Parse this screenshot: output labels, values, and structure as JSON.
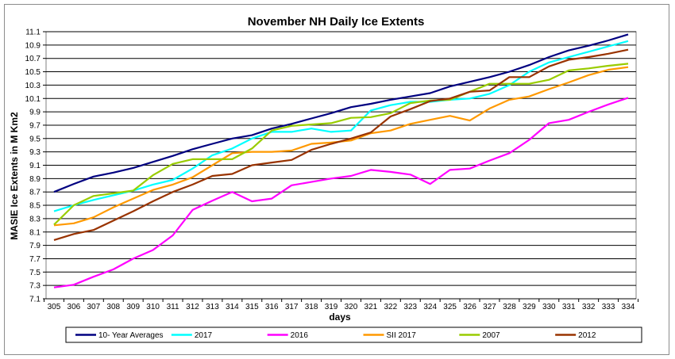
{
  "chart_data": {
    "type": "line",
    "title": "November NH Daily  Ice Extents",
    "xlabel": "days",
    "ylabel": "MASIE Ice Extents in M Km2",
    "x": [
      305,
      306,
      307,
      308,
      309,
      310,
      311,
      312,
      313,
      314,
      315,
      316,
      317,
      318,
      319,
      320,
      321,
      322,
      323,
      324,
      325,
      326,
      327,
      328,
      329,
      330,
      331,
      332,
      333,
      334
    ],
    "ylim": [
      7.1,
      11.1
    ],
    "yticks": [
      7.1,
      7.3,
      7.5,
      7.7,
      7.9,
      8.1,
      8.3,
      8.5,
      8.7,
      8.9,
      9.1,
      9.3,
      9.5,
      9.7,
      9.9,
      10.1,
      10.3,
      10.5,
      10.7,
      10.9,
      11.1
    ],
    "ytick_labels": [
      "7.1",
      "7.3",
      "7.5",
      "7.7",
      "7.9",
      "8.1",
      "8.3",
      "8.5",
      "8.7",
      "8.9",
      "9.1",
      "9.3",
      "9.5",
      "9.7",
      "9.9",
      "10.1",
      "10.3",
      "10.5",
      "10.7",
      "10.9",
      "11.1"
    ],
    "grid": true,
    "legend_position": "bottom",
    "series": [
      {
        "name": "10- Year Averages",
        "color": "#000080",
        "values": [
          8.7,
          8.82,
          8.93,
          8.99,
          9.06,
          9.15,
          9.24,
          9.34,
          9.42,
          9.5,
          9.55,
          9.65,
          9.72,
          9.8,
          9.88,
          9.97,
          10.02,
          10.08,
          10.13,
          10.18,
          10.28,
          10.35,
          10.42,
          10.5,
          10.6,
          10.72,
          10.82,
          10.89,
          10.97,
          11.06
        ]
      },
      {
        "name": "2017",
        "color": "#00ffff",
        "values": [
          8.41,
          8.5,
          8.58,
          8.65,
          8.72,
          8.81,
          8.88,
          9.05,
          9.25,
          9.35,
          9.5,
          9.6,
          9.6,
          9.65,
          9.6,
          9.62,
          9.92,
          10.0,
          10.05,
          10.05,
          10.08,
          10.1,
          10.17,
          10.3,
          10.5,
          10.64,
          10.72,
          10.8,
          10.88,
          10.96
        ]
      },
      {
        "name": "2016",
        "color": "#ff00ff",
        "values": [
          7.27,
          7.31,
          7.43,
          7.54,
          7.7,
          7.83,
          8.05,
          8.43,
          8.57,
          8.7,
          8.56,
          8.6,
          8.8,
          8.85,
          8.9,
          8.94,
          9.03,
          9.0,
          8.96,
          8.82,
          9.03,
          9.05,
          9.17,
          9.28,
          9.48,
          9.73,
          9.78,
          9.9,
          10.01,
          10.11
        ]
      },
      {
        "name": "SII 2017",
        "color": "#ff9900",
        "values": [
          8.2,
          8.23,
          8.32,
          8.47,
          8.6,
          8.73,
          8.81,
          8.92,
          9.1,
          9.28,
          9.3,
          9.3,
          9.32,
          9.42,
          9.44,
          9.47,
          9.58,
          9.62,
          9.72,
          9.78,
          9.84,
          9.77,
          9.95,
          10.08,
          10.13,
          10.24,
          10.34,
          10.45,
          10.53,
          10.57
        ]
      },
      {
        "name": "2007",
        "color": "#99cc00",
        "values": [
          8.21,
          8.5,
          8.64,
          8.68,
          8.72,
          8.95,
          9.12,
          9.19,
          9.19,
          9.19,
          9.35,
          9.62,
          9.69,
          9.71,
          9.73,
          9.81,
          9.82,
          9.88,
          10.03,
          10.07,
          10.08,
          10.2,
          10.32,
          10.32,
          10.32,
          10.38,
          10.52,
          10.55,
          10.59,
          10.62
        ]
      },
      {
        "name": "2012",
        "color": "#993300",
        "values": [
          7.98,
          8.07,
          8.13,
          8.27,
          8.41,
          8.56,
          8.7,
          8.81,
          8.94,
          8.97,
          9.1,
          9.14,
          9.18,
          9.33,
          9.42,
          9.5,
          9.59,
          9.83,
          9.94,
          10.06,
          10.1,
          10.2,
          10.22,
          10.42,
          10.42,
          10.58,
          10.68,
          10.72,
          10.77,
          10.83
        ]
      }
    ]
  }
}
